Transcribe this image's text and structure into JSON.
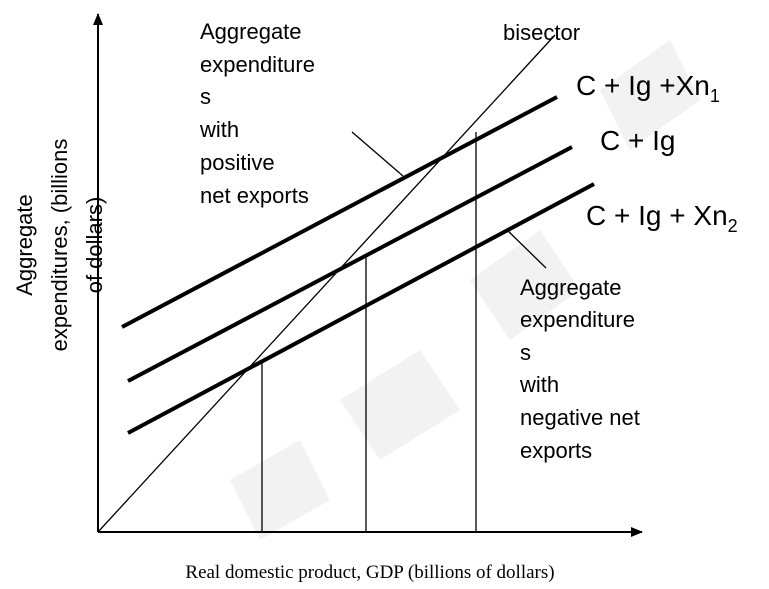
{
  "y_axis_label": [
    "Aggregate",
    "expenditures, (billions",
    "of dollars)"
  ],
  "x_axis_label": "Real domestic product, GDP (billions of dollars)",
  "bisector_label": "bisector",
  "annotation_positive": [
    "Aggregate",
    "expenditure",
    "s",
    "with",
    "positive",
    "net exports"
  ],
  "annotation_negative": [
    "Aggregate",
    "expenditure",
    "s",
    "with",
    "negative net",
    "exports"
  ],
  "curve_labels": [
    {
      "text": "C + Ig +Xn",
      "sub": "1"
    },
    {
      "text": "C + Ig"
    },
    {
      "text": "C + Ig + Xn",
      "sub": "2"
    }
  ]
}
